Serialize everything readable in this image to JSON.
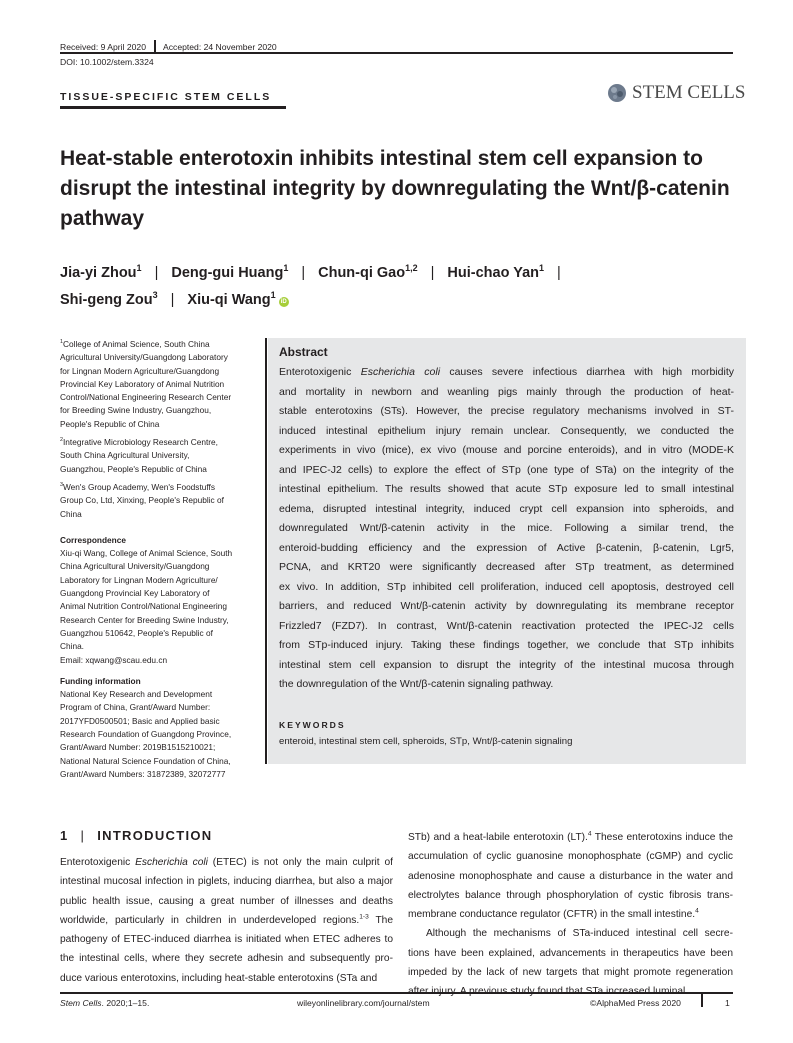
{
  "header": {
    "received": "Received: 9 April 2020",
    "accepted": "Accepted: 24 November 2020",
    "doi": "DOI: 10.1002/stem.3324",
    "section": "TISSUE-SPECIFIC STEM CELLS",
    "journal_logo": "STEM CELLS"
  },
  "title": "Heat-stable enterotoxin inhibits intestinal stem cell expansion to disrupt the intestinal integrity by downregulating the Wnt/β-catenin pathway",
  "authors": [
    {
      "name": "Jia-yi Zhou",
      "aff": "1"
    },
    {
      "name": "Deng-gui Huang",
      "aff": "1"
    },
    {
      "name": "Chun-qi Gao",
      "aff": "1,2"
    },
    {
      "name": "Hui-chao Yan",
      "aff": "1"
    },
    {
      "name": "Shi-geng Zou",
      "aff": "3"
    },
    {
      "name": "Xiu-qi Wang",
      "aff": "1",
      "orcid": true
    }
  ],
  "author_separator": "|",
  "orcid_label": "iD",
  "affiliations": [
    {
      "num": "1",
      "lines": [
        "College of Animal Science, South China",
        "Agricultural University/Guangdong Laboratory",
        "for Lingnan Modern Agriculture/Guangdong",
        "Provincial Key Laboratory of Animal Nutrition",
        "Control/National Engineering Research Center",
        "for Breeding Swine Industry, Guangzhou,",
        "People's Republic of China"
      ]
    },
    {
      "num": "2",
      "lines": [
        "Integrative Microbiology Research Centre,",
        "South China Agricultural University,",
        "Guangzhou, People's Republic of China"
      ]
    },
    {
      "num": "3",
      "lines": [
        "Wen's Group Academy, Wen's Foodstuffs",
        "Group Co, Ltd, Xinxing, People's Republic of",
        "China"
      ]
    }
  ],
  "correspondence": {
    "heading": "Correspondence",
    "lines": [
      "Xiu-qi Wang, College of Animal Science, South",
      "China Agricultural University/Guangdong",
      "Laboratory for Lingnan Modern Agriculture/",
      "Guangdong Provincial Key Laboratory of",
      "Animal Nutrition Control/National Engineering",
      "Research Center for Breeding Swine Industry,",
      "Guangzhou 510642, People's Republic of",
      "China.",
      "Email: xqwang@scau.edu.cn"
    ]
  },
  "funding": {
    "heading": "Funding information",
    "lines": [
      "National Key Research and Development",
      "Program of China, Grant/Award Number:",
      "2017YFD0500501; Basic and Applied basic",
      "Research Foundation of Guangdong Province,",
      "Grant/Award Number: 2019B1515210021;",
      "National Natural Science Foundation of China,",
      "Grant/Award Numbers: 31872389, 32072777"
    ]
  },
  "abstract": {
    "heading": "Abstract",
    "lines": [
      [
        {
          "t": "Enterotoxigenic "
        },
        {
          "t": "Escherichia coli",
          "i": true
        },
        {
          "t": " causes severe infectious diarrhea with high morbidity"
        }
      ],
      "and mortality in newborn and weanling pigs mainly through the production of heat-",
      "stable enterotoxins (STs). However, the precise regulatory mechanisms involved in ST-",
      "induced intestinal epithelium injury remain unclear. Consequently, we conducted the",
      "experiments in vivo (mice), ex vivo (mouse and porcine enteroids), and in vitro (MODE-K",
      "and IPEC-J2 cells) to explore the effect of STp (one type of STa) on the integrity of the",
      "intestinal epithelium. The results showed that acute STp exposure led to small intestinal",
      "edema, disrupted intestinal integrity, induced crypt cell expansion into spheroids, and",
      "downregulated Wnt/β-catenin activity in the mice. Following a similar trend, the",
      "enteroid-budding efficiency and the expression of Active β-catenin, β-catenin, Lgr5,",
      "PCNA, and KRT20 were significantly decreased after STp treatment, as determined",
      "ex vivo. In addition, STp inhibited cell proliferation, induced cell apoptosis, destroyed cell",
      "barriers, and reduced Wnt/β-catenin activity by downregulating its membrane receptor",
      "Frizzled7 (FZD7). In contrast, Wnt/β-catenin reactivation protected the IPEC-J2 cells",
      "from STp-induced injury. Taking these findings together, we conclude that STp inhibits",
      "intestinal stem cell expansion to disrupt the integrity of the intestinal mucosa through",
      "the downregulation of the Wnt/β-catenin signaling pathway."
    ],
    "keywords_heading": "KEYWORDS",
    "keywords": "enteroid, intestinal stem cell, spheroids, STp, Wnt/β-catenin signaling"
  },
  "introduction": {
    "number": "1",
    "heading": "INTRODUCTION",
    "left_lines": [
      [
        {
          "t": "Enterotoxigenic "
        },
        {
          "t": "Escherichia coli",
          "i": true
        },
        {
          "t": " (ETEC) is not only the main culprit of"
        }
      ],
      "intestinal mucosal infection in piglets, inducing diarrhea, but also a major",
      "public health issue, causing a great number of illnesses and deaths",
      [
        {
          "t": "worldwide, particularly in children in underdeveloped regions."
        },
        {
          "t": "1-3",
          "sup": true
        },
        {
          "t": " The"
        }
      ],
      "pathogeny of ETEC-induced diarrhea is initiated when ETEC adheres to",
      "the intestinal cells, where they secrete adhesin and subsequently pro-",
      "duce various enterotoxins, including heat-stable enterotoxins (STa and"
    ],
    "right_lines": [
      [
        {
          "t": "STb) and a heat-labile enterotoxin (LT)."
        },
        {
          "t": "4",
          "sup": true
        },
        {
          "t": " These enterotoxins induce the"
        }
      ],
      "accumulation of cyclic guanosine monophosphate (cGMP) and cyclic",
      "adenosine monophosphate and cause a disturbance in the water and",
      "electrolytes balance through phosphorylation of cystic fibrosis trans-",
      [
        {
          "t": "membrane conductance regulator (CFTR) in the small intestine."
        },
        {
          "t": "4",
          "sup": true
        }
      ],
      {
        "indent": true,
        "t": "Although the mechanisms of STa-induced intestinal cell secre-"
      },
      "tions have been explained, advancements in therapeutics have been",
      "impeded by the lack of new targets that might promote regeneration",
      "after injury. A previous study found that STa increased luminal"
    ],
    "right_last_paragraph_line_index": 4
  },
  "footer": {
    "journal": "Stem Cells",
    "citation": ". 2020;1–15.",
    "url": "wileyonlinelibrary.com/journal/stem",
    "copyright": "©AlphaMed Press 2020",
    "page": "1"
  }
}
